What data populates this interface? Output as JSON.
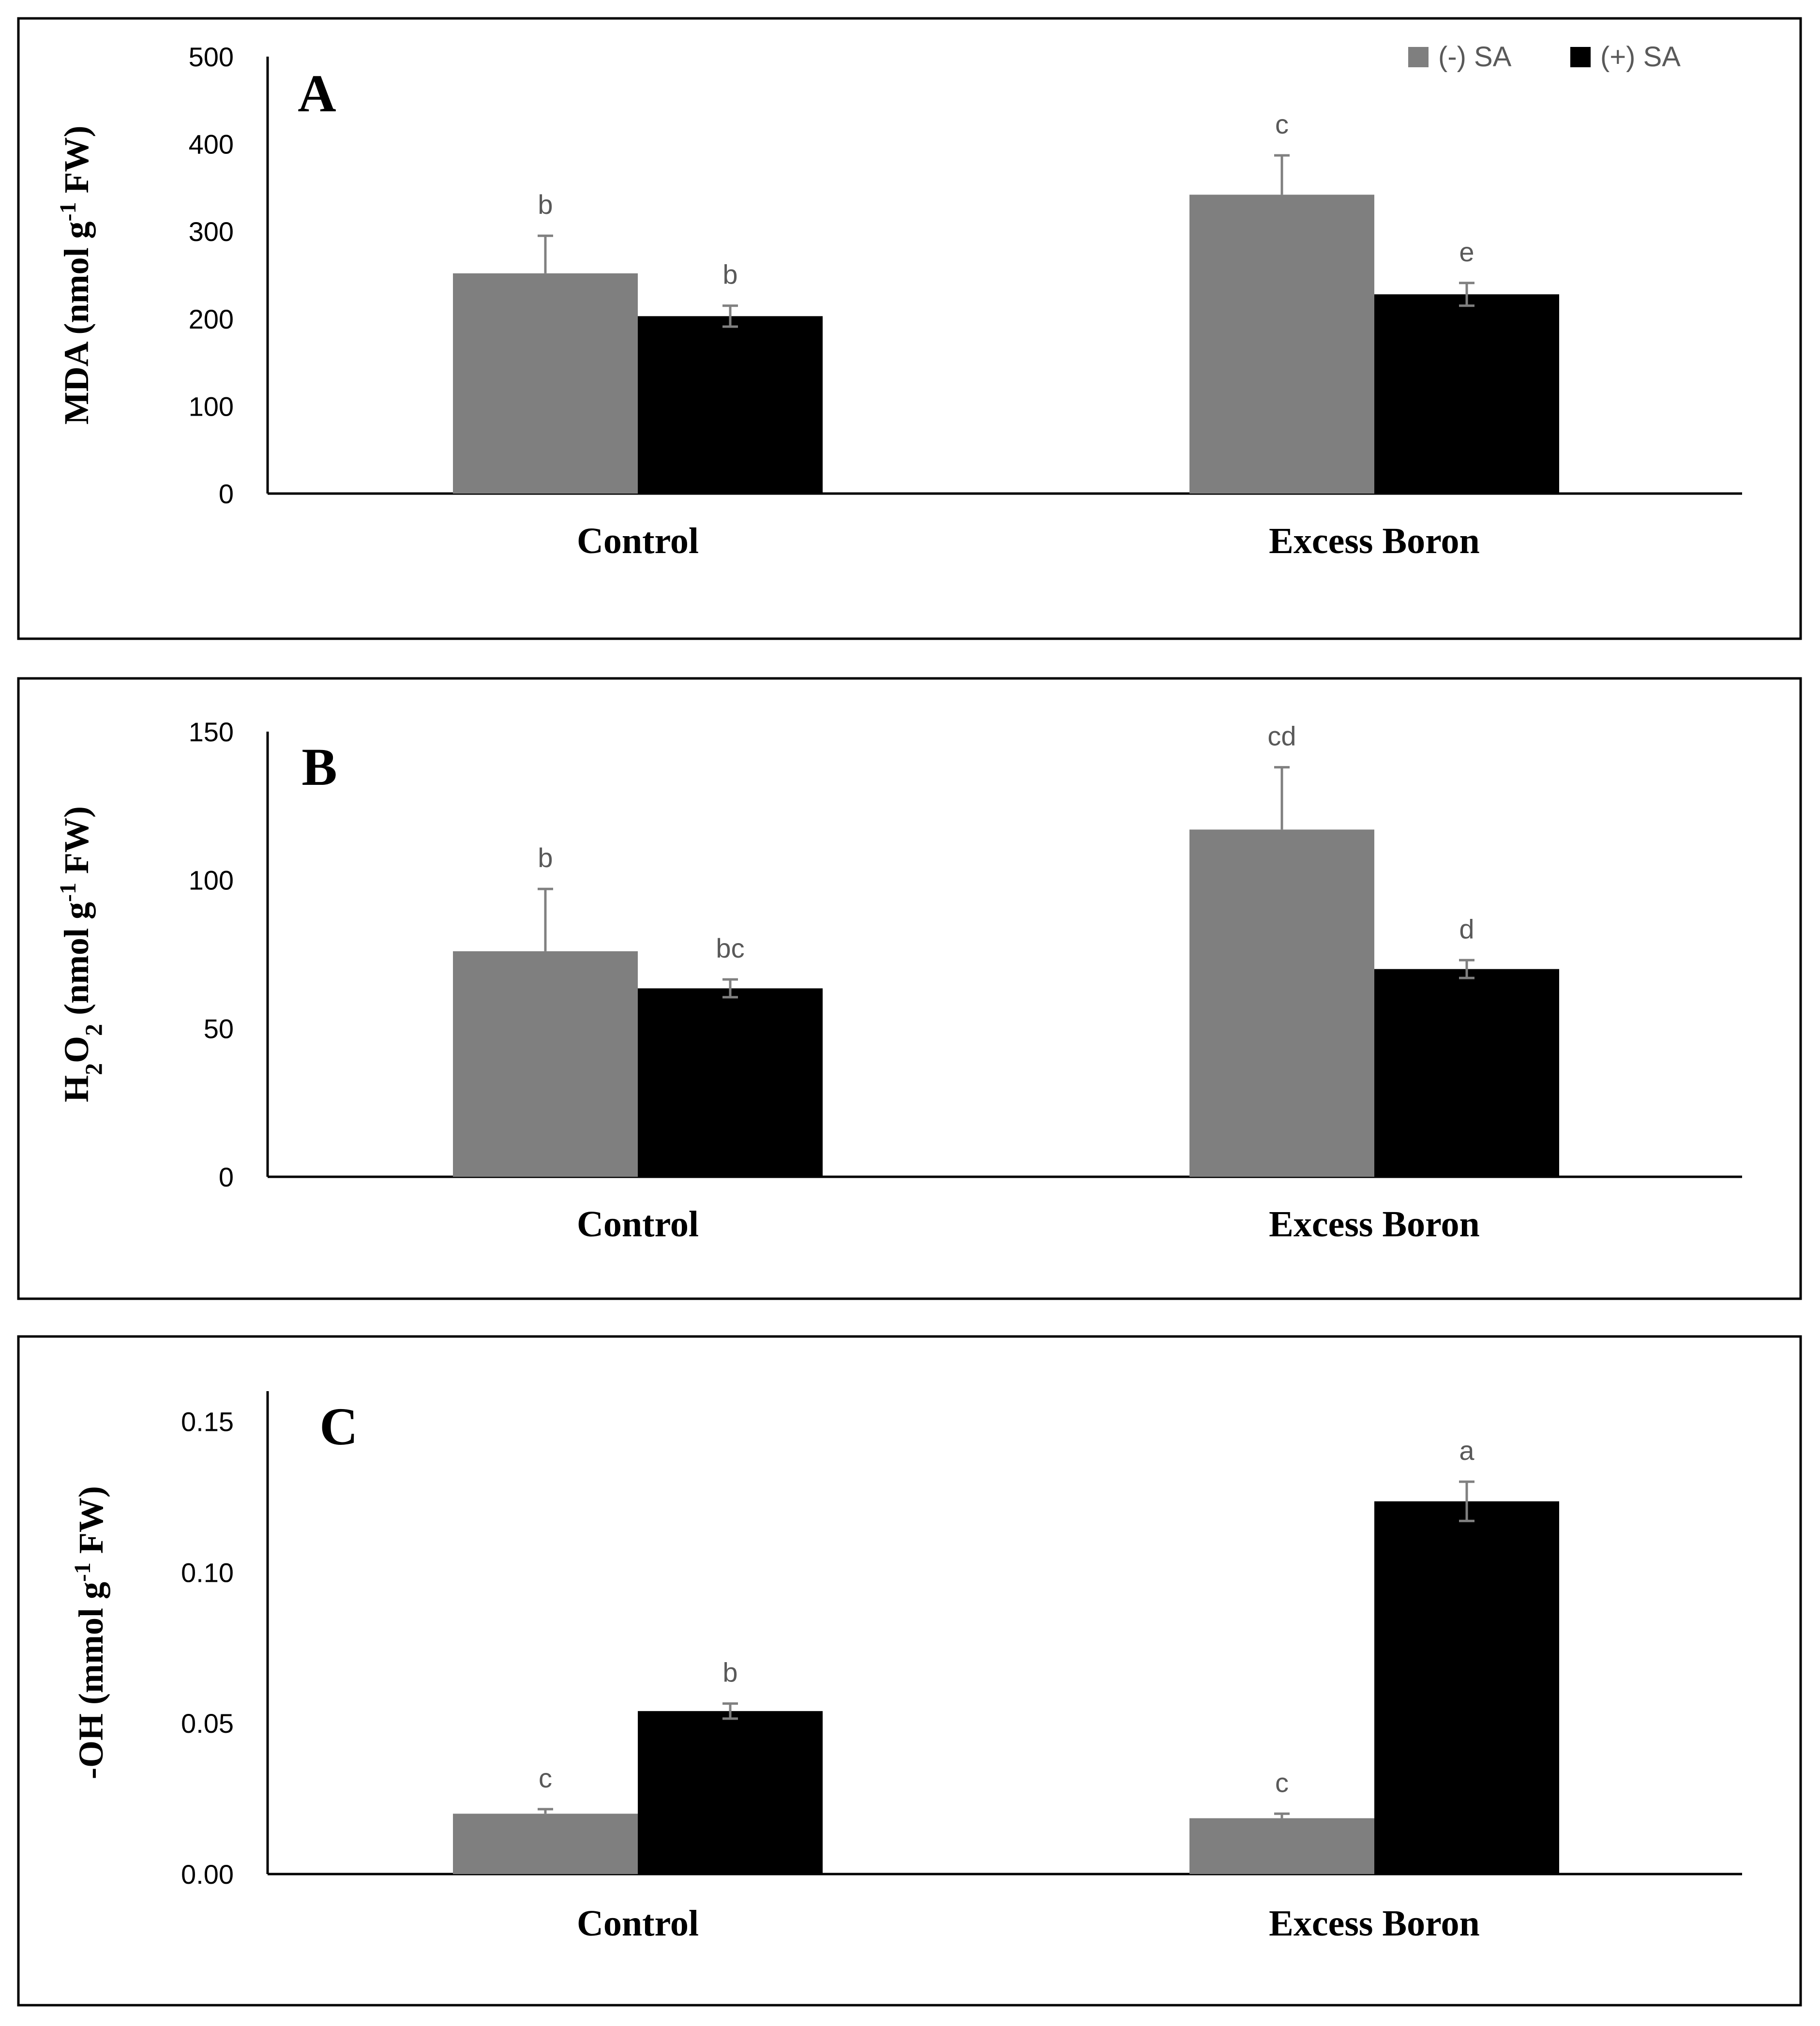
{
  "colors": {
    "minus_sa": "#7f7f7f",
    "plus_sa": "#000000",
    "error_bar": "#808080",
    "panel_border": "#000000",
    "sig_text": "#595959"
  },
  "legend": {
    "items": [
      {
        "label": "(-) SA",
        "color": "#7f7f7f"
      },
      {
        "label": "(+) SA",
        "color": "#000000"
      }
    ]
  },
  "chart_data": [
    {
      "type": "bar",
      "panel": "A",
      "ylabel": {
        "main": "MDA (nmol g",
        "sup": "-1",
        "tail": " FW)"
      },
      "categories": [
        "Control",
        "Excess Boron"
      ],
      "ylim": [
        0,
        500
      ],
      "yticks": [
        0,
        100,
        200,
        300,
        400,
        500
      ],
      "ytick_labels": [
        "0",
        "100",
        "200",
        "300",
        "400",
        "500"
      ],
      "series": [
        {
          "name": "(-) SA",
          "values": [
            252,
            342
          ],
          "errors": [
            43,
            45
          ],
          "letters": [
            "b",
            "c"
          ]
        },
        {
          "name": "(+) SA",
          "values": [
            203,
            228
          ],
          "errors": [
            12,
            13
          ],
          "letters": [
            "b",
            "e"
          ]
        }
      ]
    },
    {
      "type": "bar",
      "panel": "B",
      "ylabel": {
        "prefix": "H",
        "sub1": "2",
        "mid": "O",
        "sub2": "2",
        "main": " (nmol g",
        "sup": "-1",
        "tail": " FW)"
      },
      "categories": [
        "Control",
        "Excess Boron"
      ],
      "ylim": [
        0,
        150
      ],
      "yticks": [
        0,
        50,
        100,
        150
      ],
      "ytick_labels": [
        "0",
        "50",
        "100",
        "150"
      ],
      "series": [
        {
          "name": "(-) SA",
          "values": [
            76,
            117
          ],
          "errors": [
            21,
            21
          ],
          "letters": [
            "b",
            "cd"
          ]
        },
        {
          "name": "(+) SA",
          "values": [
            63.5,
            70
          ],
          "errors": [
            3,
            3
          ],
          "letters": [
            "bc",
            "d"
          ]
        }
      ]
    },
    {
      "type": "bar",
      "panel": "C",
      "ylabel": {
        "main": "-OH (mmol g",
        "sup": "-1",
        "tail": " FW)"
      },
      "categories": [
        "Control",
        "Excess Boron"
      ],
      "ylim": [
        0,
        0.16
      ],
      "yticks": [
        0,
        0.05,
        0.1,
        0.15
      ],
      "ytick_labels": [
        "0.00",
        "0.05",
        "0.10",
        "0.15"
      ],
      "series": [
        {
          "name": "(-) SA",
          "values": [
            0.02,
            0.0185
          ],
          "errors": [
            0.0015,
            0.0015
          ],
          "letters": [
            "c",
            "c"
          ]
        },
        {
          "name": "(+) SA",
          "values": [
            0.054,
            0.1235
          ],
          "errors": [
            0.0025,
            0.0065
          ],
          "letters": [
            "b",
            "a"
          ]
        }
      ]
    }
  ]
}
